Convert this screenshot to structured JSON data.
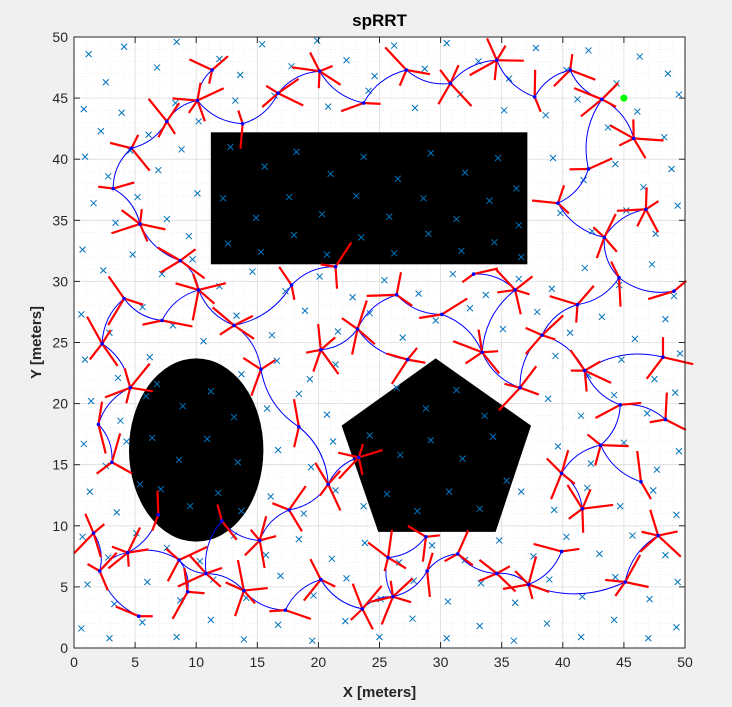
{
  "figure": {
    "background": "#f0f0f0"
  },
  "chart_data": {
    "type": "scatter",
    "title": "spRRT",
    "xlabel": "X [meters]",
    "ylabel": "Y [meters]",
    "xlim": [
      0,
      50
    ],
    "ylim": [
      0,
      50
    ],
    "xticks": [
      0,
      5,
      10,
      15,
      20,
      25,
      30,
      35,
      40,
      45,
      50
    ],
    "yticks": [
      0,
      5,
      10,
      15,
      20,
      25,
      30,
      35,
      40,
      45,
      50
    ],
    "grid": true,
    "minor_grid": true,
    "legend": "none",
    "colors": {
      "obstacles": "#000000",
      "samples": "#0072bd",
      "tree_edges": "#0000ff",
      "heading_segments": "#ff0000",
      "goal": "#00ff00"
    },
    "obstacles": [
      {
        "shape": "rectangle",
        "x": [
          11.2,
          37.1
        ],
        "y": [
          31.4,
          42.2
        ]
      },
      {
        "shape": "ellipse",
        "center": [
          10.0,
          16.2
        ],
        "radii": [
          5.5,
          7.5
        ]
      },
      {
        "shape": "polygon",
        "vertices": [
          [
            29.6,
            23.7
          ],
          [
            37.4,
            18.2
          ],
          [
            34.5,
            9.5
          ],
          [
            24.9,
            9.5
          ],
          [
            21.9,
            18.2
          ]
        ]
      }
    ],
    "goal": [
      45.0,
      45.0
    ],
    "samples": [
      [
        1.2,
        48.6
      ],
      [
        2.6,
        46.3
      ],
      [
        4.1,
        49.2
      ],
      [
        6.8,
        47.5
      ],
      [
        8.4,
        49.6
      ],
      [
        11.9,
        48.2
      ],
      [
        13.6,
        46.9
      ],
      [
        15.4,
        49.4
      ],
      [
        17.8,
        47.6
      ],
      [
        19.9,
        49.7
      ],
      [
        22.3,
        48.1
      ],
      [
        24.6,
        46.8
      ],
      [
        26.2,
        49.3
      ],
      [
        28.7,
        47.4
      ],
      [
        30.5,
        49.5
      ],
      [
        33.1,
        48.0
      ],
      [
        35.6,
        46.6
      ],
      [
        37.8,
        49.1
      ],
      [
        40.3,
        47.3
      ],
      [
        42.1,
        48.9
      ],
      [
        44.4,
        46.2
      ],
      [
        46.3,
        48.4
      ],
      [
        48.6,
        47.0
      ],
      [
        49.5,
        45.3
      ],
      [
        0.8,
        44.1
      ],
      [
        2.2,
        42.3
      ],
      [
        3.9,
        43.8
      ],
      [
        6.1,
        42.0
      ],
      [
        8.3,
        44.6
      ],
      [
        10.2,
        43.1
      ],
      [
        13.2,
        44.8
      ],
      [
        16.4,
        45.2
      ],
      [
        20.8,
        44.3
      ],
      [
        24.1,
        45.6
      ],
      [
        27.9,
        44.2
      ],
      [
        31.6,
        45.3
      ],
      [
        35.2,
        44.0
      ],
      [
        38.6,
        43.6
      ],
      [
        41.2,
        44.9
      ],
      [
        43.7,
        42.6
      ],
      [
        46.1,
        43.9
      ],
      [
        48.3,
        41.8
      ],
      [
        0.9,
        40.2
      ],
      [
        2.8,
        38.6
      ],
      [
        4.6,
        40.7
      ],
      [
        6.9,
        39.1
      ],
      [
        8.8,
        40.8
      ],
      [
        10.1,
        37.2
      ],
      [
        39.2,
        40.1
      ],
      [
        41.7,
        38.3
      ],
      [
        44.3,
        39.6
      ],
      [
        46.6,
        37.7
      ],
      [
        48.9,
        39.2
      ],
      [
        1.6,
        36.4
      ],
      [
        3.4,
        34.8
      ],
      [
        5.2,
        36.9
      ],
      [
        7.6,
        35.1
      ],
      [
        9.4,
        33.7
      ],
      [
        39.8,
        35.6
      ],
      [
        42.4,
        34.1
      ],
      [
        45.2,
        35.8
      ],
      [
        47.6,
        33.9
      ],
      [
        49.4,
        36.2
      ],
      [
        0.7,
        32.6
      ],
      [
        2.4,
        30.9
      ],
      [
        4.8,
        32.2
      ],
      [
        7.2,
        30.6
      ],
      [
        9.7,
        31.8
      ],
      [
        11.9,
        29.6
      ],
      [
        14.6,
        30.8
      ],
      [
        17.3,
        29.2
      ],
      [
        20.1,
        30.4
      ],
      [
        22.8,
        28.7
      ],
      [
        25.4,
        30.1
      ],
      [
        28.2,
        29.0
      ],
      [
        31.0,
        30.6
      ],
      [
        33.7,
        28.9
      ],
      [
        36.4,
        30.2
      ],
      [
        39.1,
        29.4
      ],
      [
        41.8,
        31.1
      ],
      [
        44.6,
        29.7
      ],
      [
        47.3,
        31.4
      ],
      [
        49.1,
        28.8
      ],
      [
        0.6,
        27.3
      ],
      [
        2.9,
        25.8
      ],
      [
        5.6,
        27.9
      ],
      [
        8.1,
        26.4
      ],
      [
        10.6,
        25.1
      ],
      [
        13.3,
        27.2
      ],
      [
        16.2,
        25.6
      ],
      [
        18.9,
        27.6
      ],
      [
        21.6,
        25.9
      ],
      [
        24.2,
        27.4
      ],
      [
        26.9,
        25.4
      ],
      [
        29.6,
        26.8
      ],
      [
        32.4,
        27.8
      ],
      [
        35.1,
        26.1
      ],
      [
        37.9,
        27.5
      ],
      [
        40.6,
        25.8
      ],
      [
        43.2,
        27.1
      ],
      [
        45.9,
        25.3
      ],
      [
        48.4,
        26.9
      ],
      [
        0.9,
        23.6
      ],
      [
        3.6,
        22.1
      ],
      [
        6.2,
        23.8
      ],
      [
        13.7,
        22.4
      ],
      [
        16.6,
        23.5
      ],
      [
        19.3,
        22.0
      ],
      [
        21.4,
        23.2
      ],
      [
        39.4,
        23.9
      ],
      [
        42.1,
        22.3
      ],
      [
        44.8,
        23.6
      ],
      [
        47.5,
        22.0
      ],
      [
        49.6,
        24.1
      ],
      [
        1.4,
        20.2
      ],
      [
        3.8,
        18.6
      ],
      [
        5.9,
        20.6
      ],
      [
        15.8,
        19.6
      ],
      [
        18.4,
        20.8
      ],
      [
        20.7,
        19.1
      ],
      [
        38.8,
        20.4
      ],
      [
        41.5,
        19.0
      ],
      [
        44.2,
        20.7
      ],
      [
        46.9,
        19.2
      ],
      [
        49.2,
        20.9
      ],
      [
        0.8,
        16.7
      ],
      [
        2.6,
        14.9
      ],
      [
        4.3,
        16.9
      ],
      [
        16.7,
        16.2
      ],
      [
        19.4,
        14.8
      ],
      [
        21.2,
        16.9
      ],
      [
        39.6,
        16.5
      ],
      [
        42.3,
        15.1
      ],
      [
        45.0,
        16.8
      ],
      [
        47.7,
        14.6
      ],
      [
        49.5,
        16.1
      ],
      [
        1.3,
        12.8
      ],
      [
        3.5,
        11.1
      ],
      [
        5.4,
        13.4
      ],
      [
        16.1,
        12.4
      ],
      [
        18.8,
        11.0
      ],
      [
        21.4,
        12.9
      ],
      [
        23.7,
        11.6
      ],
      [
        36.6,
        12.8
      ],
      [
        39.3,
        11.3
      ],
      [
        42.0,
        13.1
      ],
      [
        44.7,
        11.6
      ],
      [
        47.4,
        12.9
      ],
      [
        49.3,
        10.9
      ],
      [
        0.7,
        9.1
      ],
      [
        2.8,
        7.4
      ],
      [
        5.1,
        9.4
      ],
      [
        7.6,
        8.2
      ],
      [
        10.3,
        7.1
      ],
      [
        13.1,
        9.2
      ],
      [
        15.7,
        7.6
      ],
      [
        18.4,
        8.9
      ],
      [
        21.1,
        7.3
      ],
      [
        23.8,
        8.6
      ],
      [
        26.6,
        7.0
      ],
      [
        29.3,
        8.4
      ],
      [
        32.0,
        7.2
      ],
      [
        34.8,
        8.8
      ],
      [
        37.6,
        7.5
      ],
      [
        40.3,
        9.1
      ],
      [
        43.0,
        7.7
      ],
      [
        45.7,
        9.2
      ],
      [
        48.4,
        7.6
      ],
      [
        1.1,
        5.2
      ],
      [
        3.3,
        3.6
      ],
      [
        6.0,
        5.4
      ],
      [
        8.7,
        3.9
      ],
      [
        11.4,
        5.6
      ],
      [
        14.1,
        4.1
      ],
      [
        16.9,
        5.9
      ],
      [
        19.6,
        4.3
      ],
      [
        22.3,
        5.7
      ],
      [
        25.1,
        4.0
      ],
      [
        27.8,
        5.5
      ],
      [
        30.6,
        3.8
      ],
      [
        33.3,
        5.3
      ],
      [
        36.1,
        3.7
      ],
      [
        38.9,
        5.6
      ],
      [
        41.6,
        4.2
      ],
      [
        44.3,
        5.8
      ],
      [
        47.1,
        4.0
      ],
      [
        49.4,
        5.4
      ],
      [
        0.6,
        1.6
      ],
      [
        2.9,
        0.8
      ],
      [
        5.6,
        2.1
      ],
      [
        8.4,
        0.9
      ],
      [
        11.2,
        2.3
      ],
      [
        13.9,
        0.7
      ],
      [
        16.7,
        1.9
      ],
      [
        19.5,
        0.6
      ],
      [
        22.2,
        2.2
      ],
      [
        25.0,
        0.9
      ],
      [
        27.7,
        2.4
      ],
      [
        30.5,
        0.8
      ],
      [
        33.2,
        1.8
      ],
      [
        36.0,
        0.6
      ],
      [
        38.7,
        2.0
      ],
      [
        41.5,
        0.9
      ],
      [
        44.2,
        2.3
      ],
      [
        47.0,
        0.8
      ],
      [
        49.3,
        1.7
      ],
      [
        12.8,
        41.0
      ],
      [
        15.6,
        39.4
      ],
      [
        18.2,
        40.6
      ],
      [
        21.0,
        38.8
      ],
      [
        23.7,
        40.2
      ],
      [
        26.5,
        38.4
      ],
      [
        29.2,
        40.5
      ],
      [
        32.0,
        38.9
      ],
      [
        34.7,
        40.1
      ],
      [
        36.2,
        37.6
      ],
      [
        12.2,
        36.8
      ],
      [
        14.9,
        35.2
      ],
      [
        17.6,
        36.9
      ],
      [
        20.3,
        35.5
      ],
      [
        23.1,
        37.0
      ],
      [
        25.8,
        35.3
      ],
      [
        28.6,
        36.8
      ],
      [
        31.3,
        35.1
      ],
      [
        34.0,
        36.6
      ],
      [
        36.4,
        34.6
      ],
      [
        12.6,
        33.1
      ],
      [
        15.3,
        32.4
      ],
      [
        18.0,
        33.8
      ],
      [
        20.7,
        32.2
      ],
      [
        23.5,
        33.6
      ],
      [
        26.2,
        32.3
      ],
      [
        29.0,
        33.9
      ],
      [
        31.7,
        32.5
      ],
      [
        34.4,
        33.2
      ],
      [
        36.6,
        32.0
      ],
      [
        6.8,
        21.6
      ],
      [
        8.9,
        19.8
      ],
      [
        11.2,
        21.0
      ],
      [
        13.1,
        18.9
      ],
      [
        6.4,
        17.2
      ],
      [
        8.6,
        15.4
      ],
      [
        10.9,
        17.1
      ],
      [
        13.4,
        15.2
      ],
      [
        7.1,
        13.0
      ],
      [
        9.5,
        11.6
      ],
      [
        11.8,
        12.7
      ],
      [
        13.7,
        11.2
      ],
      [
        26.4,
        21.3
      ],
      [
        28.8,
        19.6
      ],
      [
        31.3,
        21.1
      ],
      [
        33.6,
        19.0
      ],
      [
        24.2,
        17.4
      ],
      [
        26.7,
        15.8
      ],
      [
        29.2,
        17.0
      ],
      [
        31.8,
        15.5
      ],
      [
        34.3,
        17.3
      ],
      [
        25.6,
        12.6
      ],
      [
        28.1,
        11.2
      ],
      [
        30.7,
        12.8
      ],
      [
        33.2,
        11.4
      ],
      [
        35.4,
        13.7
      ]
    ],
    "tree_nodes": [
      [
        5.3,
        2.6
      ],
      [
        2.1,
        6.3
      ],
      [
        1.6,
        9.4
      ],
      [
        4.4,
        7.8
      ],
      [
        6.9,
        10.9
      ],
      [
        8.6,
        7.2
      ],
      [
        10.8,
        6.1
      ],
      [
        13.9,
        4.7
      ],
      [
        17.3,
        3.1
      ],
      [
        20.2,
        5.6
      ],
      [
        23.6,
        3.2
      ],
      [
        26.1,
        4.2
      ],
      [
        28.9,
        6.3
      ],
      [
        31.4,
        7.7
      ],
      [
        34.6,
        6.1
      ],
      [
        37.2,
        5.2
      ],
      [
        39.9,
        7.9
      ],
      [
        17.6,
        11.3
      ],
      [
        20.8,
        13.4
      ],
      [
        23.3,
        15.6
      ],
      [
        18.4,
        18.1
      ],
      [
        15.3,
        22.8
      ],
      [
        13.1,
        26.4
      ],
      [
        10.2,
        29.3
      ],
      [
        7.2,
        26.8
      ],
      [
        4.1,
        28.6
      ],
      [
        2.3,
        24.9
      ],
      [
        4.6,
        21.3
      ],
      [
        2.0,
        18.3
      ],
      [
        3.1,
        15.2
      ],
      [
        8.7,
        31.7
      ],
      [
        5.4,
        34.7
      ],
      [
        3.2,
        37.6
      ],
      [
        4.7,
        40.9
      ],
      [
        7.6,
        43.1
      ],
      [
        10.1,
        44.8
      ],
      [
        13.8,
        42.9
      ],
      [
        11.3,
        47.3
      ],
      [
        16.7,
        45.4
      ],
      [
        20.1,
        47.2
      ],
      [
        23.7,
        44.6
      ],
      [
        27.2,
        47.3
      ],
      [
        30.8,
        46.2
      ],
      [
        34.6,
        48.1
      ],
      [
        37.7,
        45.1
      ],
      [
        40.6,
        47.3
      ],
      [
        43.2,
        44.9
      ],
      [
        45.8,
        41.7
      ],
      [
        42.1,
        39.2
      ],
      [
        39.6,
        36.4
      ],
      [
        43.4,
        33.6
      ],
      [
        46.8,
        35.9
      ],
      [
        44.6,
        30.3
      ],
      [
        41.2,
        28.1
      ],
      [
        38.3,
        25.6
      ],
      [
        41.8,
        22.7
      ],
      [
        44.7,
        19.9
      ],
      [
        43.1,
        16.6
      ],
      [
        39.9,
        14.3
      ],
      [
        41.6,
        11.4
      ],
      [
        46.4,
        13.6
      ],
      [
        48.2,
        23.8
      ],
      [
        36.5,
        21.3
      ],
      [
        33.4,
        24.2
      ],
      [
        30.1,
        27.3
      ],
      [
        26.4,
        28.9
      ],
      [
        23.2,
        26.1
      ],
      [
        20.2,
        24.4
      ],
      [
        17.8,
        29.7
      ],
      [
        21.4,
        31.2
      ],
      [
        27.3,
        23.6
      ],
      [
        36.1,
        29.3
      ],
      [
        32.7,
        30.6
      ],
      [
        28.8,
        9.1
      ],
      [
        25.7,
        7.4
      ],
      [
        15.2,
        8.8
      ],
      [
        12.1,
        10.4
      ],
      [
        9.3,
        4.6
      ],
      [
        45.1,
        5.4
      ],
      [
        47.8,
        9.2
      ],
      [
        49.1,
        29.2
      ],
      [
        48.4,
        18.7
      ]
    ],
    "tree_edges": [
      [
        0,
        1
      ],
      [
        1,
        2
      ],
      [
        1,
        3
      ],
      [
        3,
        4
      ],
      [
        3,
        5
      ],
      [
        5,
        6
      ],
      [
        6,
        7
      ],
      [
        7,
        8
      ],
      [
        8,
        9
      ],
      [
        9,
        10
      ],
      [
        10,
        11
      ],
      [
        11,
        12
      ],
      [
        12,
        13
      ],
      [
        13,
        14
      ],
      [
        14,
        15
      ],
      [
        15,
        16
      ],
      [
        6,
        76
      ],
      [
        76,
        75
      ],
      [
        75,
        17
      ],
      [
        17,
        18
      ],
      [
        18,
        19
      ],
      [
        18,
        20
      ],
      [
        20,
        21
      ],
      [
        21,
        22
      ],
      [
        22,
        23
      ],
      [
        23,
        24
      ],
      [
        24,
        25
      ],
      [
        25,
        26
      ],
      [
        26,
        27
      ],
      [
        27,
        28
      ],
      [
        28,
        29
      ],
      [
        23,
        30
      ],
      [
        30,
        31
      ],
      [
        31,
        32
      ],
      [
        32,
        33
      ],
      [
        33,
        34
      ],
      [
        34,
        35
      ],
      [
        35,
        36
      ],
      [
        35,
        37
      ],
      [
        36,
        38
      ],
      [
        38,
        39
      ],
      [
        39,
        40
      ],
      [
        40,
        41
      ],
      [
        41,
        42
      ],
      [
        42,
        43
      ],
      [
        43,
        44
      ],
      [
        44,
        45
      ],
      [
        45,
        46
      ],
      [
        46,
        47
      ],
      [
        46,
        48
      ],
      [
        48,
        49
      ],
      [
        49,
        50
      ],
      [
        50,
        51
      ],
      [
        50,
        52
      ],
      [
        52,
        53
      ],
      [
        53,
        54
      ],
      [
        54,
        55
      ],
      [
        55,
        56
      ],
      [
        56,
        57
      ],
      [
        57,
        58
      ],
      [
        58,
        59
      ],
      [
        57,
        60
      ],
      [
        55,
        61
      ],
      [
        54,
        62
      ],
      [
        62,
        63
      ],
      [
        63,
        64
      ],
      [
        64,
        65
      ],
      [
        65,
        66
      ],
      [
        66,
        67
      ],
      [
        22,
        68
      ],
      [
        68,
        69
      ],
      [
        66,
        70
      ],
      [
        63,
        71
      ],
      [
        71,
        72
      ],
      [
        11,
        74
      ],
      [
        74,
        73
      ],
      [
        5,
        77
      ],
      [
        15,
        78
      ],
      [
        78,
        79
      ],
      [
        52,
        80
      ],
      [
        56,
        81
      ]
    ]
  }
}
